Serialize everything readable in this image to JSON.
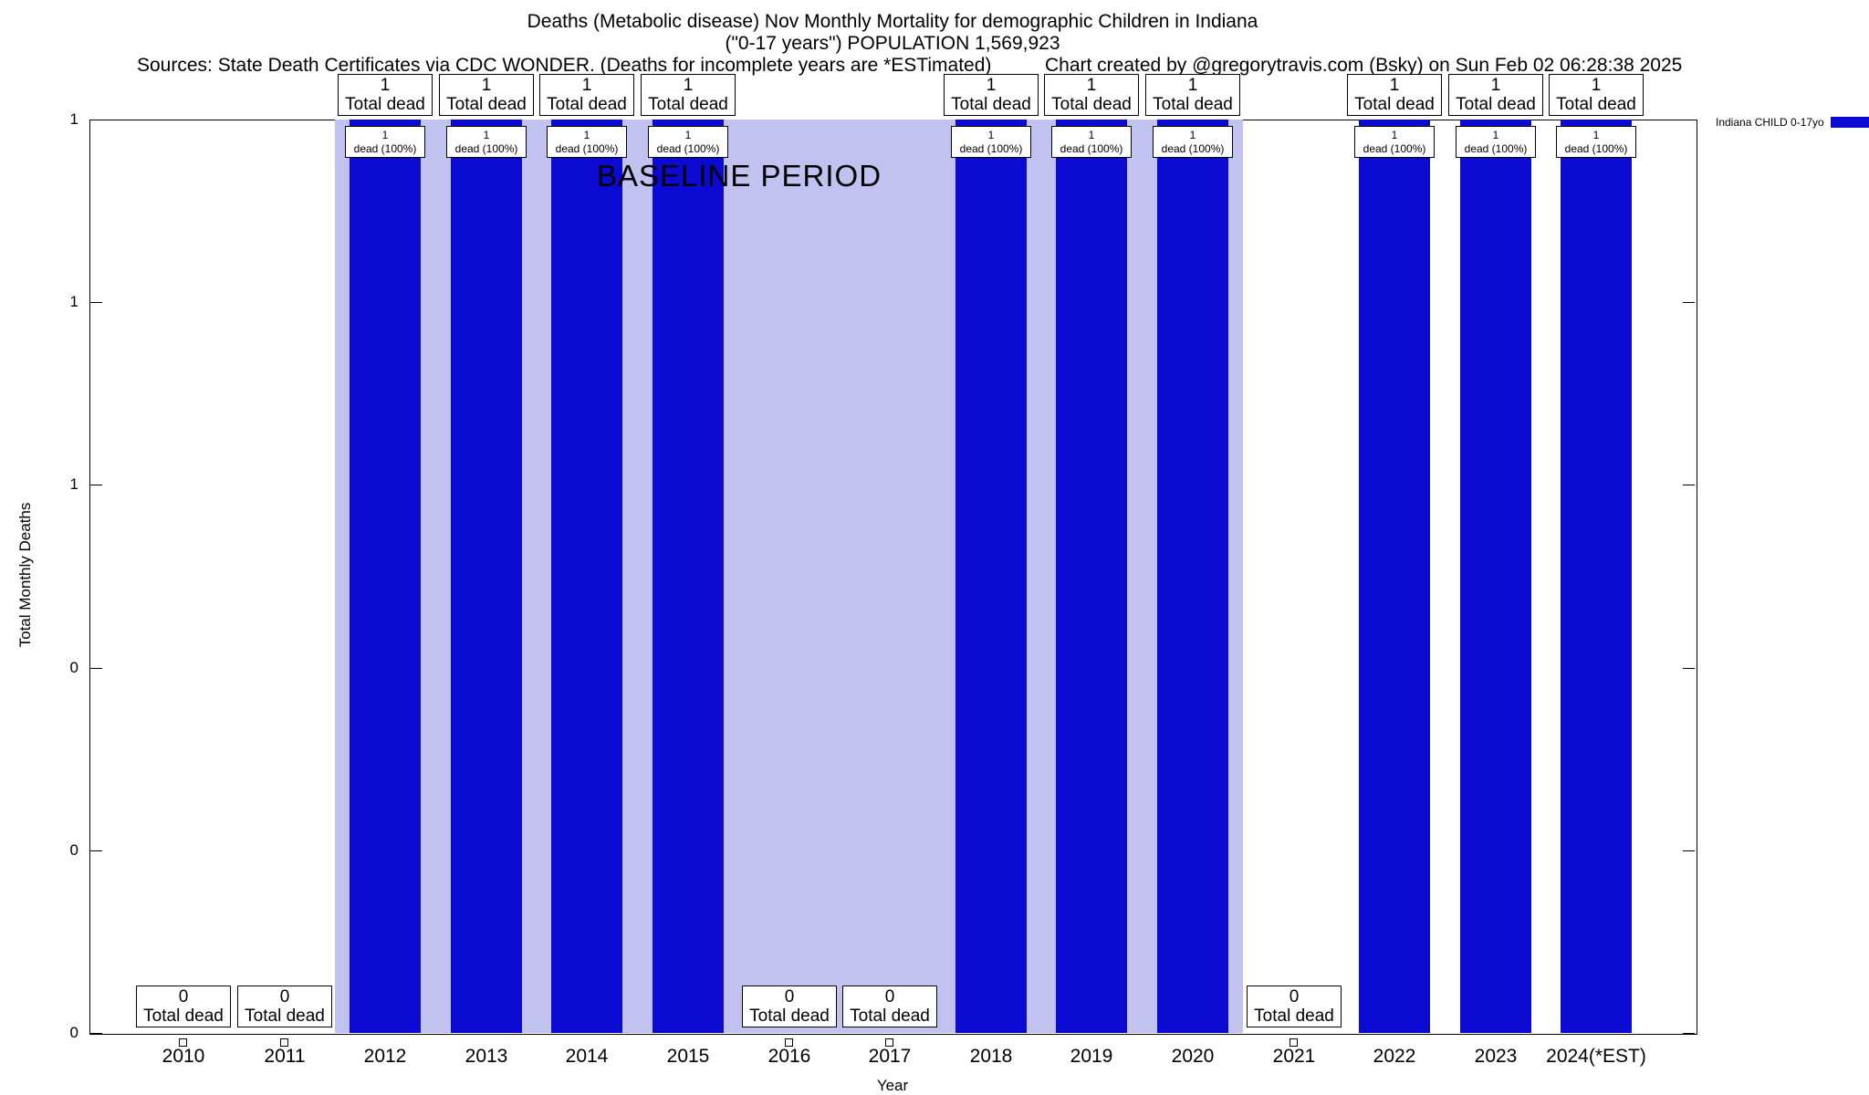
{
  "header": {
    "title_line1": "Deaths (Metabolic disease) Nov Monthly Mortality for demographic Children in Indiana",
    "title_line2": "(\"0-17 years\") POPULATION 1,569,923",
    "sources": "Sources: State Death Certificates via CDC WONDER. (Deaths for incomplete years are *ESTimated)",
    "credit": "Chart created by @gregorytravis.com (Bsky) on Sun Feb 02 06:28:38 2025"
  },
  "legend": {
    "series_label": "Indiana CHILD 0-17yo",
    "swatch_color": "#0a0ad2",
    "position": "top-right"
  },
  "axes": {
    "xlabel": "Year",
    "ylabel": "Total Monthly Deaths",
    "y_tick_labels_top_to_bottom": [
      "1",
      "1",
      "1",
      "0",
      "0",
      "0"
    ]
  },
  "baseline_region": {
    "label": "BASELINE PERIOD",
    "from_year": "2012",
    "to_year": "2020",
    "fill_color": "#c2c2f0"
  },
  "chart_data": {
    "type": "bar",
    "title": "Deaths (Metabolic disease) Nov Monthly Mortality for demographic Children in Indiana (\"0-17 years\") POPULATION 1,569,923",
    "xlabel": "Year",
    "ylabel": "Total Monthly Deaths",
    "ylim": [
      0,
      1
    ],
    "grid": false,
    "legend_position": "top-right",
    "categories": [
      "2010",
      "2011",
      "2012",
      "2013",
      "2014",
      "2015",
      "2016",
      "2017",
      "2018",
      "2019",
      "2020",
      "2021",
      "2022",
      "2023",
      "2024(*EST)"
    ],
    "series": [
      {
        "name": "Indiana CHILD 0-17yo",
        "color": "#0a0ad2",
        "values": [
          0,
          0,
          1,
          1,
          1,
          1,
          0,
          0,
          1,
          1,
          1,
          0,
          1,
          1,
          1
        ]
      }
    ],
    "baseline_region": {
      "label": "BASELINE PERIOD",
      "from_year": "2012",
      "to_year": "2020"
    },
    "annotations": {
      "nonzero_top_box": {
        "line1": "1",
        "line2": "Total dead"
      },
      "nonzero_bar_box": {
        "line1": "1",
        "line2": "dead (100%)"
      },
      "zero_box": {
        "line1": "0",
        "line2": "Total dead"
      }
    }
  }
}
